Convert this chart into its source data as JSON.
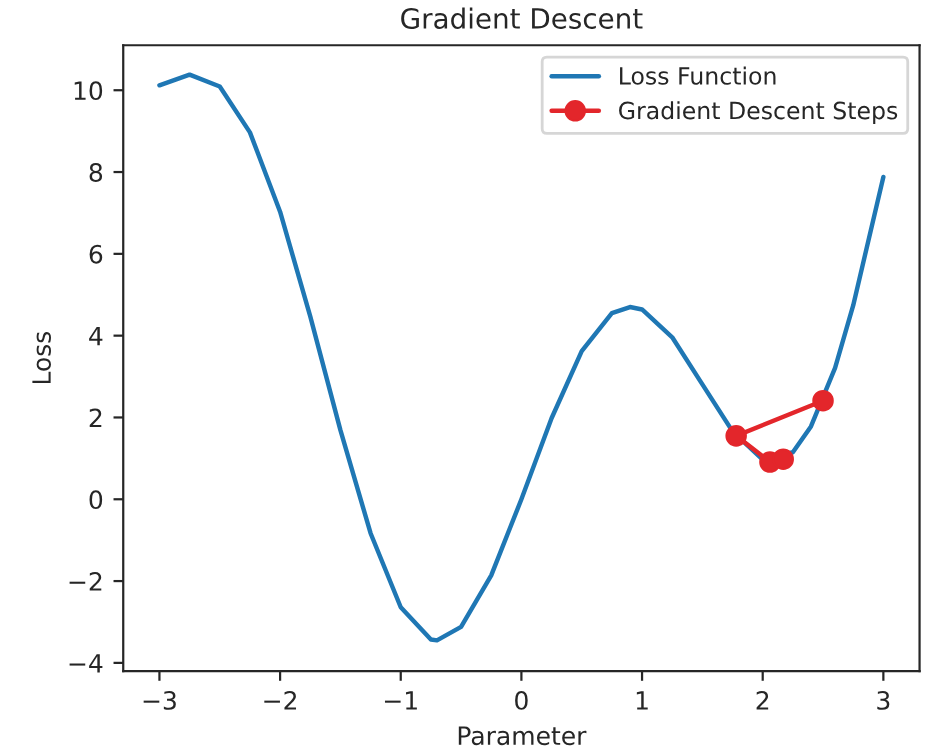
{
  "chart_data": {
    "type": "line",
    "title": "Gradient Descent",
    "xlabel": "Parameter",
    "ylabel": "Loss",
    "xlim": [
      -3.3,
      3.3
    ],
    "ylim": [
      -4.2,
      11.1
    ],
    "xticks": [
      -3,
      -2,
      -1,
      0,
      1,
      2,
      3
    ],
    "yticks": [
      -4,
      -2,
      0,
      2,
      4,
      6,
      8,
      10
    ],
    "grid": false,
    "legend": "top right",
    "series": [
      {
        "name": "Loss Function",
        "color": "#1f77b4",
        "marker": "none",
        "x": [
          -3,
          -2.75,
          -2.5,
          -2.25,
          -2,
          -1.75,
          -1.5,
          -1.25,
          -1,
          -0.75,
          -0.7,
          -0.5,
          -0.25,
          0,
          0.25,
          0.5,
          0.75,
          0.9,
          1,
          1.25,
          1.5,
          1.75,
          2,
          2.25,
          2.4,
          2.6,
          2.75,
          3
        ],
        "values": [
          10.12,
          10.38,
          10.09,
          8.97,
          7.03,
          4.47,
          1.69,
          -0.83,
          -2.64,
          -3.43,
          -3.45,
          -3.12,
          -1.86,
          0,
          1.98,
          3.62,
          4.55,
          4.7,
          4.64,
          3.96,
          2.81,
          1.66,
          0.97,
          1.15,
          1.78,
          3.21,
          4.74,
          7.88
        ]
      },
      {
        "name": "Gradient Descent Steps",
        "color": "#e3262b",
        "marker": "circle",
        "x": [
          2.5,
          1.78,
          2.06,
          2.17
        ],
        "values": [
          2.41,
          1.55,
          0.91,
          0.98
        ]
      }
    ]
  }
}
